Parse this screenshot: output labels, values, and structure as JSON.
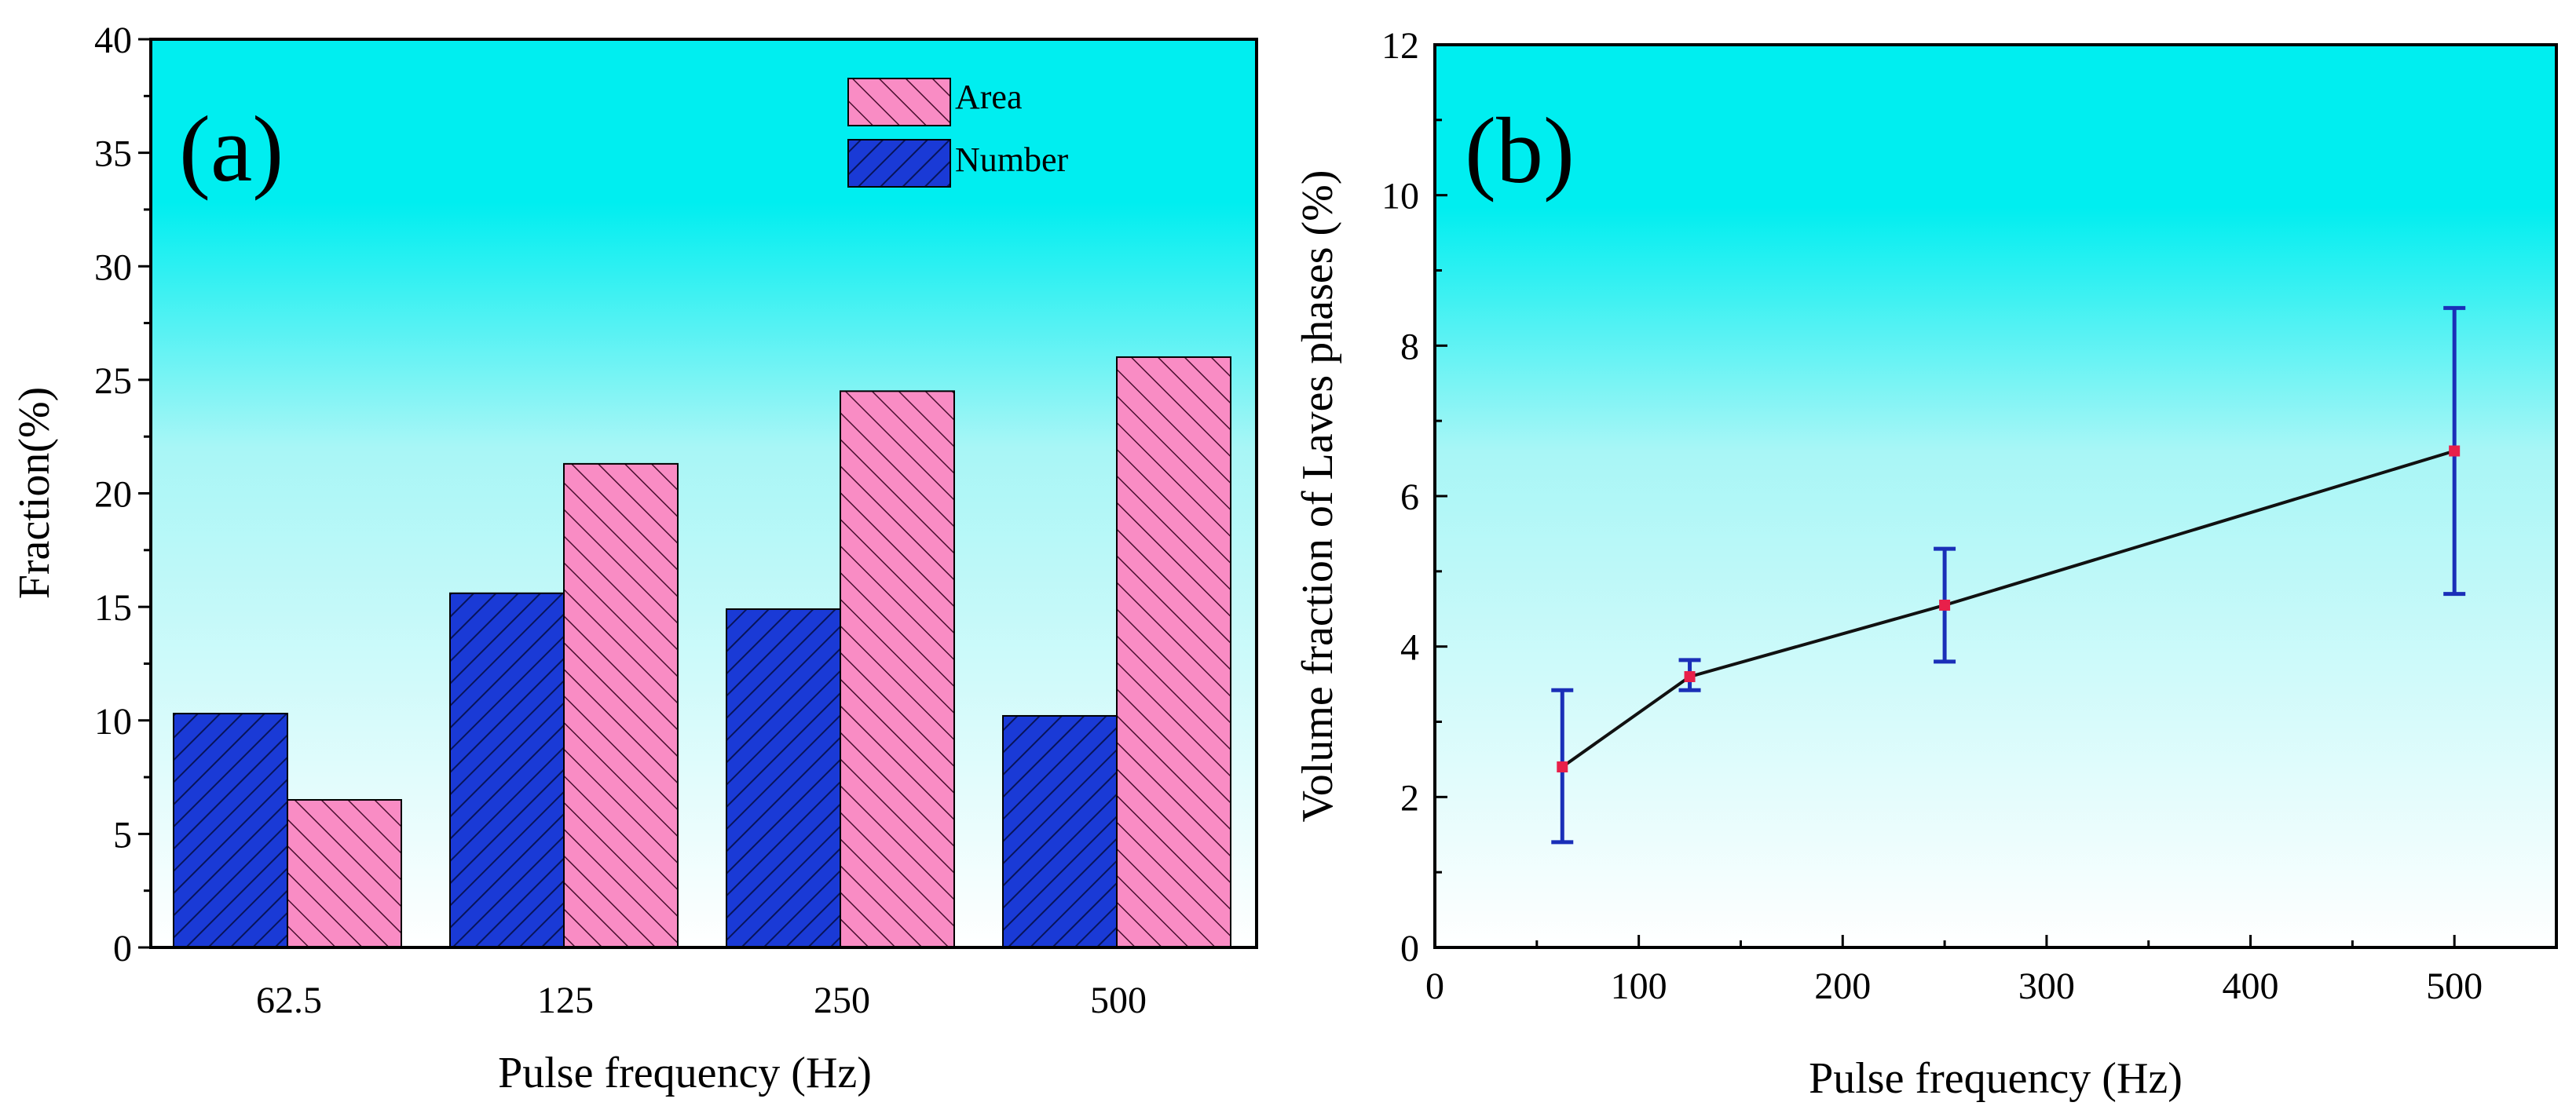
{
  "colors": {
    "bg_top": "#00eef0",
    "bg_bottom": "#ffffff",
    "number_bar": "#1a3ad6",
    "area_bar": "#f98cc4",
    "line": "#111111",
    "error_bar": "#1a2fb8",
    "marker": "#e8204a"
  },
  "chart_data": [
    {
      "type": "bar",
      "panel_label": "(a)",
      "categories": [
        "62.5",
        "125",
        "250",
        "500"
      ],
      "series": [
        {
          "name": "Number",
          "values": [
            10.3,
            15.6,
            14.9,
            10.2
          ]
        },
        {
          "name": "Area",
          "values": [
            6.5,
            21.3,
            24.5,
            26.0
          ]
        }
      ],
      "xlabel": "Pulse frequency (Hz)",
      "ylabel": "Fraction(%)",
      "ylim": [
        0,
        40
      ],
      "yticks": [
        "0",
        "5",
        "10",
        "15",
        "20",
        "25",
        "30",
        "35",
        "40"
      ],
      "legend_position": "top-right"
    },
    {
      "type": "line",
      "panel_label": "(b)",
      "x": [
        62.5,
        125,
        250,
        500
      ],
      "y": [
        2.4,
        3.6,
        4.55,
        6.6
      ],
      "err_low": [
        1.4,
        3.42,
        3.8,
        4.7
      ],
      "err_high": [
        3.42,
        3.82,
        5.3,
        8.5
      ],
      "xlabel": "Pulse frequency (Hz)",
      "ylabel": "Volume fraction of Laves phases (%)",
      "xlim": [
        0,
        550
      ],
      "ylim": [
        0,
        12
      ],
      "xticks": [
        "0",
        "100",
        "200",
        "300",
        "400",
        "500"
      ],
      "yticks": [
        "0",
        "2",
        "4",
        "6",
        "8",
        "10",
        "12"
      ]
    }
  ]
}
